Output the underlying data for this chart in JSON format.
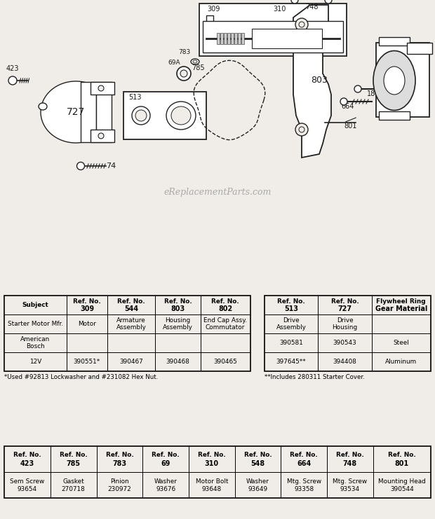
{
  "bg_color": "#f0ede8",
  "watermark": "eReplacementParts.com",
  "footnote1": "*Used #92813 Lockwasher and #231082 Hex Nut.",
  "footnote2": "**Includes 280311 Starter Cover.",
  "table1_headers": [
    "Subject",
    "Ref. No.\n309",
    "Ref. No.\n544",
    "Ref. No.\n803",
    "Ref. No.\n802"
  ],
  "table1_rows": [
    [
      "Starter Motor Mfr.",
      "Motor",
      "Armature\nAssembly",
      "Housing\nAssembly",
      "End Cap Assy.\nCommutator"
    ],
    [
      "American\nBosch",
      "",
      "",
      "",
      ""
    ],
    [
      "12V",
      "390551*",
      "390467",
      "390468",
      "390465"
    ]
  ],
  "table2_headers": [
    "Ref. No.\n513",
    "Ref. No.\n727",
    "Flywheel Ring\nGear Material"
  ],
  "table2_rows": [
    [
      "Drive\nAssembly",
      "Drive\nHousing",
      ""
    ],
    [
      "390581",
      "390543",
      "Steel"
    ],
    [
      "397645**",
      "394408",
      "Aluminum"
    ]
  ],
  "table3_headers": [
    "Ref. No.\n423",
    "Ref. No.\n785",
    "Ref. No.\n783",
    "Ref. No.\n69",
    "Ref. No.\n310",
    "Ref. No.\n548",
    "Ref. No.\n664",
    "Ref. No.\n748",
    "Ref. No.\n801"
  ],
  "table3_rows": [
    [
      "Sem Screw\n93654",
      "Gasket\n270718",
      "Pinion\n230972",
      "Washer\n93676",
      "Motor Bolt\n93648",
      "Washer\n93649",
      "Mtg. Screw\n93358",
      "Mtg. Screw\n93534",
      "Mounting Head\n390544"
    ]
  ]
}
